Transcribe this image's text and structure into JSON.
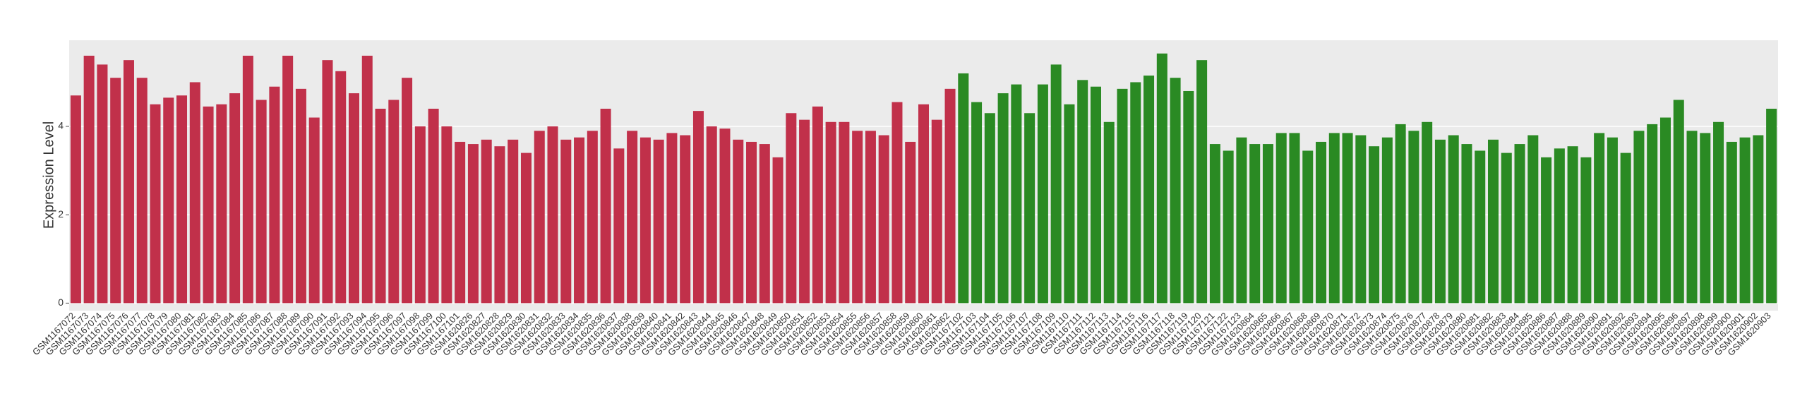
{
  "chart_data": {
    "type": "bar",
    "y_label": "Expression Level",
    "categories": [
      "GSM1167072",
      "GSM1167073",
      "GSM1167074",
      "GSM1167075",
      "GSM1167076",
      "GSM1167077",
      "GSM1167078",
      "GSM1167079",
      "GSM1167080",
      "GSM1167081",
      "GSM1167082",
      "GSM1167083",
      "GSM1167084",
      "GSM1167085",
      "GSM1167086",
      "GSM1167087",
      "GSM1167088",
      "GSM1167089",
      "GSM1167090",
      "GSM1167091",
      "GSM1167092",
      "GSM1167093",
      "GSM1167094",
      "GSM1167095",
      "GSM1167096",
      "GSM1167097",
      "GSM1167098",
      "GSM1167099",
      "GSM1167100",
      "GSM1167101",
      "GSM1620826",
      "GSM1620827",
      "GSM1620828",
      "GSM1620829",
      "GSM1620830",
      "GSM1620831",
      "GSM1620832",
      "GSM1620833",
      "GSM1620834",
      "GSM1620835",
      "GSM1620836",
      "GSM1620837",
      "GSM1620838",
      "GSM1620839",
      "GSM1620840",
      "GSM1620841",
      "GSM1620842",
      "GSM1620843",
      "GSM1620844",
      "GSM1620845",
      "GSM1620846",
      "GSM1620847",
      "GSM1620848",
      "GSM1620849",
      "GSM1620850",
      "GSM1620851",
      "GSM1620852",
      "GSM1620853",
      "GSM1620854",
      "GSM1620855",
      "GSM1620856",
      "GSM1620857",
      "GSM1620858",
      "GSM1620859",
      "GSM1620860",
      "GSM1620861",
      "GSM1620862",
      "GSM1167102",
      "GSM1167103",
      "GSM1167104",
      "GSM1167105",
      "GSM1167106",
      "GSM1167107",
      "GSM1167108",
      "GSM1167109",
      "GSM1167110",
      "GSM1167111",
      "GSM1167112",
      "GSM1167113",
      "GSM1167114",
      "GSM1167115",
      "GSM1167116",
      "GSM1167117",
      "GSM1167118",
      "GSM1167119",
      "GSM1167120",
      "GSM1167121",
      "GSM1167122",
      "GSM1167123",
      "GSM1620864",
      "GSM1620865",
      "GSM1620866",
      "GSM1620867",
      "GSM1620868",
      "GSM1620869",
      "GSM1620870",
      "GSM1620871",
      "GSM1620872",
      "GSM1620873",
      "GSM1620874",
      "GSM1620875",
      "GSM1620876",
      "GSM1620877",
      "GSM1620878",
      "GSM1620879",
      "GSM1620880",
      "GSM1620881",
      "GSM1620882",
      "GSM1620883",
      "GSM1620884",
      "GSM1620885",
      "GSM1620886",
      "GSM1620887",
      "GSM1620888",
      "GSM1620889",
      "GSM1620890",
      "GSM1620891",
      "GSM1620892",
      "GSM1620893",
      "GSM1620894",
      "GSM1620895",
      "GSM1620896",
      "GSM1620897",
      "GSM1620898",
      "GSM1620899",
      "GSM1620900",
      "GSM1620901",
      "GSM1620902",
      "GSM1620903"
    ],
    "values": [
      4.7,
      5.6,
      5.4,
      5.1,
      5.5,
      5.1,
      4.5,
      4.65,
      4.7,
      5.0,
      4.45,
      4.5,
      4.75,
      5.6,
      4.6,
      4.9,
      5.6,
      4.85,
      4.2,
      5.5,
      5.25,
      4.75,
      5.6,
      4.4,
      4.6,
      5.1,
      4.0,
      4.4,
      4.0,
      3.65,
      3.6,
      3.7,
      3.55,
      3.7,
      3.4,
      3.9,
      4.0,
      3.7,
      3.75,
      3.9,
      4.4,
      3.5,
      3.9,
      3.75,
      3.7,
      3.85,
      3.8,
      4.35,
      4.0,
      3.95,
      3.7,
      3.65,
      3.6,
      3.3,
      4.3,
      4.15,
      4.45,
      4.1,
      4.1,
      3.9,
      3.9,
      3.8,
      4.55,
      3.65,
      4.5,
      4.15,
      4.85,
      5.2,
      4.55,
      4.3,
      4.75,
      4.95,
      4.3,
      4.95,
      5.4,
      4.5,
      5.05,
      4.9,
      4.1,
      4.85,
      5.0,
      5.15,
      5.65,
      5.1,
      4.8,
      5.5,
      3.6,
      3.45,
      3.75,
      3.6,
      3.6,
      3.85,
      3.85,
      3.45,
      3.65,
      3.85,
      3.85,
      3.8,
      3.55,
      3.75,
      4.05,
      3.9,
      4.1,
      3.7,
      3.8,
      3.6,
      3.45,
      3.7,
      3.4,
      3.6,
      3.8,
      3.3,
      3.5,
      3.55,
      3.3,
      3.85,
      3.75,
      3.4,
      3.9,
      4.05,
      4.2,
      4.6,
      3.9,
      3.85,
      4.1,
      3.65,
      3.75,
      3.8,
      4.4
    ],
    "colors": [
      "#c1304a",
      "#c1304a",
      "#c1304a",
      "#c1304a",
      "#c1304a",
      "#c1304a",
      "#c1304a",
      "#c1304a",
      "#c1304a",
      "#c1304a",
      "#c1304a",
      "#c1304a",
      "#c1304a",
      "#c1304a",
      "#c1304a",
      "#c1304a",
      "#c1304a",
      "#c1304a",
      "#c1304a",
      "#c1304a",
      "#c1304a",
      "#c1304a",
      "#c1304a",
      "#c1304a",
      "#c1304a",
      "#c1304a",
      "#c1304a",
      "#c1304a",
      "#c1304a",
      "#c1304a",
      "#c1304a",
      "#c1304a",
      "#c1304a",
      "#c1304a",
      "#c1304a",
      "#c1304a",
      "#c1304a",
      "#c1304a",
      "#c1304a",
      "#c1304a",
      "#c1304a",
      "#c1304a",
      "#c1304a",
      "#c1304a",
      "#c1304a",
      "#c1304a",
      "#c1304a",
      "#c1304a",
      "#c1304a",
      "#c1304a",
      "#c1304a",
      "#c1304a",
      "#c1304a",
      "#c1304a",
      "#c1304a",
      "#c1304a",
      "#c1304a",
      "#c1304a",
      "#c1304a",
      "#c1304a",
      "#c1304a",
      "#c1304a",
      "#c1304a",
      "#c1304a",
      "#c1304a",
      "#c1304a",
      "#c1304a",
      "#2a8a23",
      "#2a8a23",
      "#2a8a23",
      "#2a8a23",
      "#2a8a23",
      "#2a8a23",
      "#2a8a23",
      "#2a8a23",
      "#2a8a23",
      "#2a8a23",
      "#2a8a23",
      "#2a8a23",
      "#2a8a23",
      "#2a8a23",
      "#2a8a23",
      "#2a8a23",
      "#2a8a23",
      "#2a8a23",
      "#2a8a23",
      "#2a8a23",
      "#2a8a23",
      "#2a8a23",
      "#2a8a23",
      "#2a8a23",
      "#2a8a23",
      "#2a8a23",
      "#2a8a23",
      "#2a8a23",
      "#2a8a23",
      "#2a8a23",
      "#2a8a23",
      "#2a8a23",
      "#2a8a23",
      "#2a8a23",
      "#2a8a23",
      "#2a8a23",
      "#2a8a23",
      "#2a8a23",
      "#2a8a23",
      "#2a8a23",
      "#2a8a23",
      "#2a8a23",
      "#2a8a23",
      "#2a8a23",
      "#2a8a23",
      "#2a8a23",
      "#2a8a23",
      "#2a8a23",
      "#2a8a23",
      "#2a8a23",
      "#2a8a23",
      "#2a8a23",
      "#2a8a23",
      "#2a8a23",
      "#2a8a23",
      "#2a8a23",
      "#2a8a23",
      "#2a8a23",
      "#2a8a23",
      "#2a8a23",
      "#2a8a23",
      "#2a8a23"
    ],
    "ylim": [
      -0.17,
      5.95
    ],
    "yticks": [
      0,
      2,
      4
    ],
    "grid": true
  }
}
